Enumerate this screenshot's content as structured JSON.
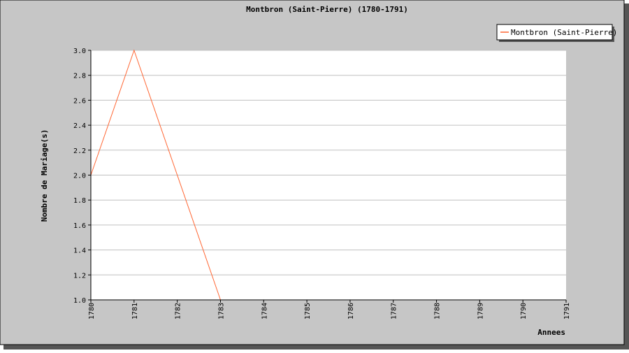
{
  "chart_data": {
    "type": "line",
    "title": "Montbron (Saint-Pierre) (1780-1791)",
    "xlabel": "Annees",
    "ylabel": "Nombre de Mariage(s)",
    "x": [
      "1780",
      "1781",
      "1782",
      "1783",
      "1784",
      "1785",
      "1786",
      "1787",
      "1788",
      "1789",
      "1790",
      "1791"
    ],
    "x_ticks": [
      "1780",
      "1781",
      "1782",
      "1783",
      "1784",
      "1785",
      "1786",
      "1787",
      "1788",
      "1789",
      "1790",
      "1791"
    ],
    "y_ticks": [
      "1.0",
      "1.2",
      "1.4",
      "1.6",
      "1.8",
      "2.0",
      "2.2",
      "2.4",
      "2.6",
      "2.8",
      "3.0"
    ],
    "ylim": [
      1.0,
      3.0
    ],
    "grid": true,
    "legend_position": "top-right",
    "series": [
      {
        "name": "Montbron (Saint-Pierre)",
        "color": "#ff6633",
        "x": [
          1780,
          1781,
          1782,
          1783
        ],
        "values": [
          2,
          3,
          2,
          1
        ]
      }
    ]
  },
  "colors": {
    "background": "#c6c6c6",
    "plot_background": "#ffffff",
    "grid": "#c0c0c0",
    "shadow": "#555555"
  }
}
